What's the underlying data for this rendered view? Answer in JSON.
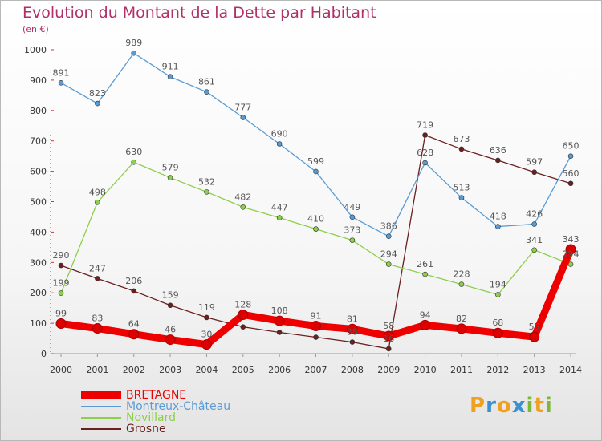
{
  "title": "Evolution du Montant de la Dette par Habitant",
  "unit": "(en €)",
  "logo": {
    "text": "Proxiti",
    "letters": [
      {
        "ch": "P",
        "color": "#f0a020"
      },
      {
        "ch": "r",
        "color": "#3a90d0"
      },
      {
        "ch": "o",
        "color": "#f0a020"
      },
      {
        "ch": "x",
        "color": "#3a90d0"
      },
      {
        "ch": "i",
        "color": "#7ab83a"
      },
      {
        "ch": "t",
        "color": "#f0a020"
      },
      {
        "ch": "i",
        "color": "#7ab83a"
      }
    ]
  },
  "chart_data": {
    "type": "line",
    "title": "Evolution du Montant de la Dette par Habitant",
    "ylabel": "(en €)",
    "xlabel": "",
    "x": [
      "2000",
      "2001",
      "2002",
      "2003",
      "2004",
      "2005",
      "2006",
      "2007",
      "2008",
      "2009",
      "2010",
      "2011",
      "2012",
      "2013",
      "2014"
    ],
    "ylim": [
      0,
      1000
    ],
    "yticks": [
      0,
      100,
      200,
      300,
      400,
      500,
      600,
      700,
      800,
      900,
      1000
    ],
    "grid": false,
    "legend_position": "bottom-left",
    "series": [
      {
        "name": "Grosne",
        "color": "#6b1f1f",
        "values": [
          290,
          247,
          206,
          159,
          119,
          88,
          70,
          54,
          38,
          16,
          719,
          673,
          636,
          597,
          560
        ],
        "labels": [
          true,
          true,
          true,
          true,
          true,
          false,
          false,
          false,
          true,
          true,
          true,
          true,
          true,
          true,
          true
        ]
      },
      {
        "name": "Novillard",
        "color": "#8ccf4a",
        "values": [
          199,
          498,
          630,
          579,
          532,
          482,
          447,
          410,
          373,
          294,
          261,
          228,
          194,
          341,
          294
        ],
        "labels": [
          true,
          true,
          true,
          true,
          true,
          true,
          true,
          true,
          true,
          true,
          true,
          true,
          true,
          true,
          true
        ]
      },
      {
        "name": "Montreux-Château",
        "color": "#5b9bd5",
        "values": [
          891,
          823,
          989,
          911,
          861,
          777,
          690,
          599,
          449,
          386,
          628,
          513,
          418,
          426,
          650
        ],
        "labels": [
          true,
          true,
          true,
          true,
          true,
          true,
          true,
          true,
          true,
          true,
          true,
          true,
          true,
          true,
          true
        ]
      },
      {
        "name": "BRETAGNE",
        "color": "#ee0000",
        "values": [
          99,
          83,
          64,
          46,
          30,
          128,
          108,
          91,
          81,
          58,
          94,
          82,
          68,
          55,
          343
        ],
        "labels": [
          true,
          true,
          true,
          true,
          true,
          true,
          true,
          true,
          true,
          true,
          true,
          true,
          true,
          true,
          true
        ]
      }
    ],
    "legend_order": [
      "BRETAGNE",
      "Montreux-Château",
      "Novillard",
      "Grosne"
    ]
  }
}
